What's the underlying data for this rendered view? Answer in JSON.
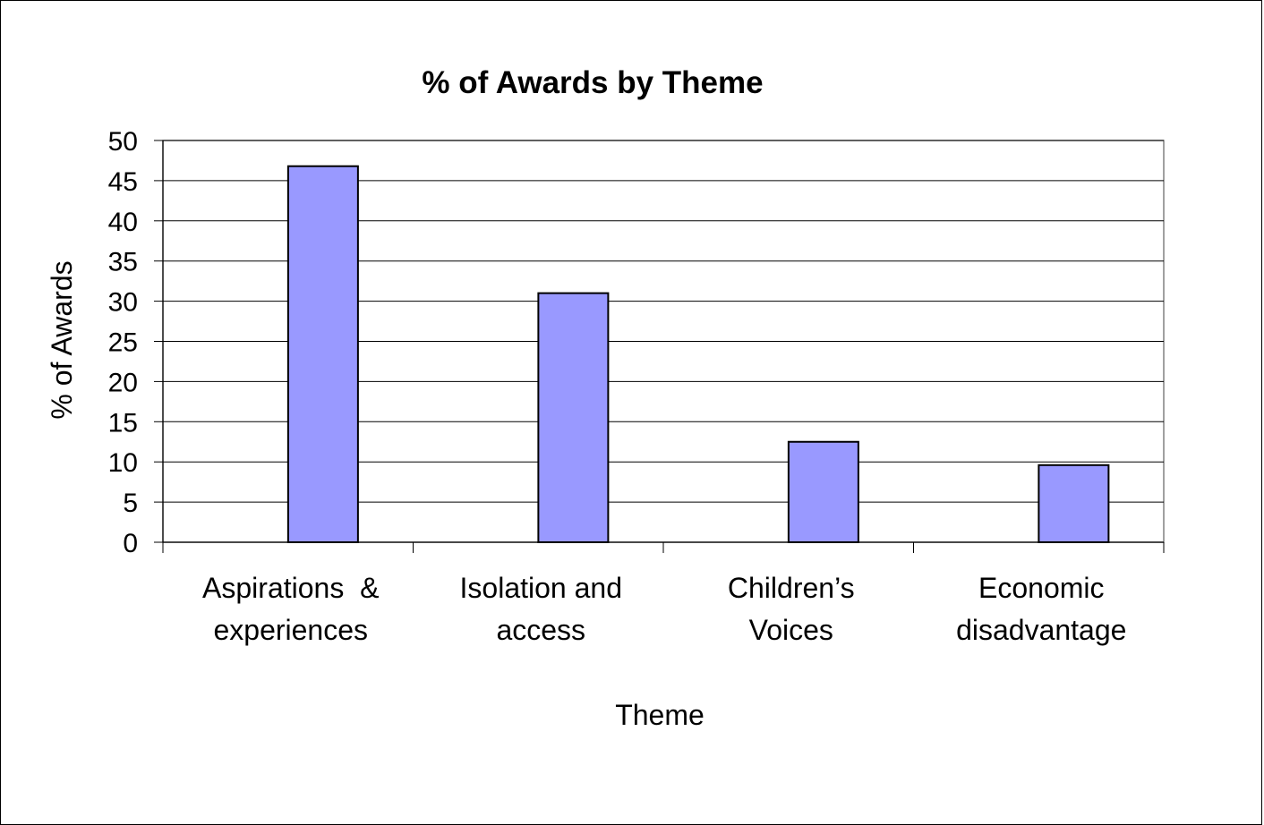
{
  "chart_data": {
    "type": "bar",
    "title": "% of Awards by Theme",
    "xlabel": "Theme",
    "ylabel": "% of Awards",
    "categories": [
      [
        "Aspirations  &",
        "experiences"
      ],
      [
        "Isolation and",
        "access"
      ],
      [
        "Children’s",
        "Voices"
      ],
      [
        "Economic",
        "disadvantage"
      ]
    ],
    "values": [
      46.8,
      31.0,
      12.5,
      9.6
    ],
    "ylim": [
      0,
      50
    ],
    "yticks": [
      0,
      5,
      10,
      15,
      20,
      25,
      30,
      35,
      40,
      45,
      50
    ],
    "grid": true,
    "legend": "none",
    "colors": {
      "bar_fill": "#9999ff",
      "bar_stroke": "#000000",
      "gridline": "#000000",
      "plot_border": "#808080"
    }
  }
}
